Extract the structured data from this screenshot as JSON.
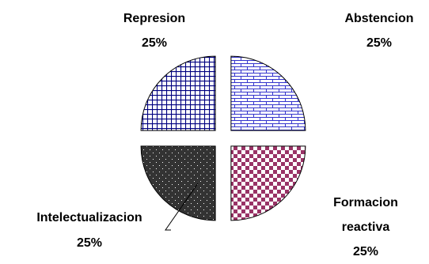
{
  "chart_data": {
    "type": "pie",
    "exploded": true,
    "slices": [
      {
        "label": "Abstencion",
        "value": 25,
        "percent_label": "25%",
        "pattern": "bricks",
        "fg_color": "#3333cc",
        "bg_color": "#ffffff"
      },
      {
        "label": "Formacion reactiva",
        "label_lines": [
          "Formacion",
          "reactiva"
        ],
        "value": 25,
        "percent_label": "25%",
        "pattern": "checkerboard",
        "fg_color": "#993366",
        "bg_color": "#ffffff"
      },
      {
        "label": "Intelectualizacion",
        "value": 25,
        "percent_label": "25%",
        "pattern": "dotted",
        "fg_color": "#ffffff",
        "bg_color": "#333333"
      },
      {
        "label": "Represion",
        "value": 25,
        "percent_label": "25%",
        "pattern": "grid",
        "fg_color": "#000080",
        "bg_color": "#ffffff"
      }
    ]
  }
}
